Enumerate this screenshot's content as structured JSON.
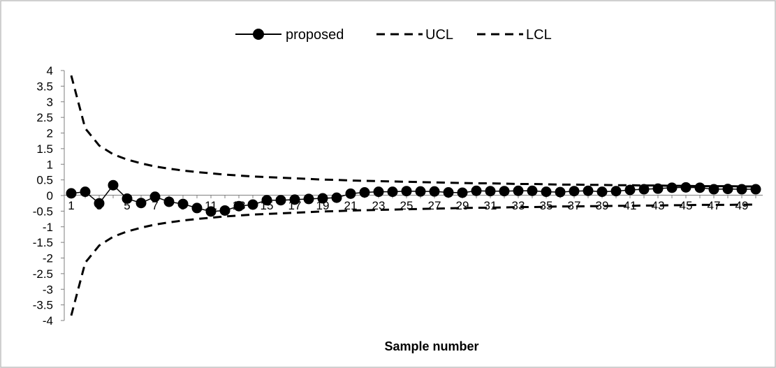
{
  "chart_data": {
    "type": "line",
    "title": "",
    "xlabel": "Sample number",
    "ylabel": "",
    "ylim": [
      -4,
      4
    ],
    "yticks": [
      4,
      3.5,
      3,
      2.5,
      2,
      1.5,
      1,
      0.5,
      0,
      -0.5,
      -1,
      -1.5,
      -2,
      -2.5,
      -3,
      -3.5,
      -4
    ],
    "xlim": [
      1,
      50
    ],
    "xticks": [
      1,
      3,
      5,
      7,
      9,
      11,
      13,
      15,
      17,
      19,
      21,
      23,
      25,
      27,
      29,
      31,
      33,
      35,
      37,
      39,
      41,
      43,
      45,
      47,
      49
    ],
    "legend_position": "top",
    "grid": false,
    "x": [
      1,
      2,
      3,
      4,
      5,
      6,
      7,
      8,
      9,
      10,
      11,
      12,
      13,
      14,
      15,
      16,
      17,
      18,
      19,
      20,
      21,
      22,
      23,
      24,
      25,
      26,
      27,
      28,
      29,
      30,
      31,
      32,
      33,
      34,
      35,
      36,
      37,
      38,
      39,
      40,
      41,
      42,
      43,
      44,
      45,
      46,
      47,
      48,
      49,
      50
    ],
    "series": [
      {
        "name": "proposed",
        "style": "solid-with-circle-markers",
        "color": "#000000",
        "values": [
          0.07,
          0.12,
          -0.25,
          0.33,
          -0.1,
          -0.24,
          -0.04,
          -0.2,
          -0.27,
          -0.4,
          -0.51,
          -0.48,
          -0.34,
          -0.29,
          -0.15,
          -0.15,
          -0.13,
          -0.11,
          -0.09,
          -0.07,
          0.06,
          0.1,
          0.12,
          0.12,
          0.14,
          0.13,
          0.13,
          0.1,
          0.09,
          0.15,
          0.14,
          0.14,
          0.15,
          0.15,
          0.12,
          0.11,
          0.14,
          0.15,
          0.12,
          0.14,
          0.18,
          0.2,
          0.22,
          0.25,
          0.26,
          0.25,
          0.2,
          0.21,
          0.2,
          0.2
        ]
      },
      {
        "name": "UCL",
        "style": "dashed",
        "color": "#000000",
        "values": [
          3.84,
          2.15,
          1.6,
          1.32,
          1.15,
          1.03,
          0.93,
          0.86,
          0.8,
          0.75,
          0.71,
          0.67,
          0.64,
          0.61,
          0.59,
          0.57,
          0.55,
          0.53,
          0.51,
          0.5,
          0.48,
          0.47,
          0.46,
          0.45,
          0.44,
          0.43,
          0.42,
          0.41,
          0.4,
          0.39,
          0.39,
          0.38,
          0.37,
          0.37,
          0.36,
          0.35,
          0.35,
          0.34,
          0.34,
          0.33,
          0.33,
          0.32,
          0.32,
          0.31,
          0.31,
          0.3,
          0.3,
          0.3,
          0.29,
          0.29
        ]
      },
      {
        "name": "LCL",
        "style": "dashed",
        "color": "#000000",
        "values": [
          -3.84,
          -2.15,
          -1.6,
          -1.32,
          -1.15,
          -1.03,
          -0.93,
          -0.86,
          -0.8,
          -0.75,
          -0.71,
          -0.67,
          -0.64,
          -0.61,
          -0.59,
          -0.57,
          -0.55,
          -0.53,
          -0.51,
          -0.5,
          -0.48,
          -0.47,
          -0.46,
          -0.45,
          -0.44,
          -0.43,
          -0.42,
          -0.41,
          -0.4,
          -0.39,
          -0.39,
          -0.38,
          -0.37,
          -0.37,
          -0.36,
          -0.35,
          -0.35,
          -0.34,
          -0.34,
          -0.33,
          -0.33,
          -0.32,
          -0.32,
          -0.31,
          -0.31,
          -0.3,
          -0.3,
          -0.3,
          -0.29,
          -0.29
        ]
      }
    ]
  }
}
